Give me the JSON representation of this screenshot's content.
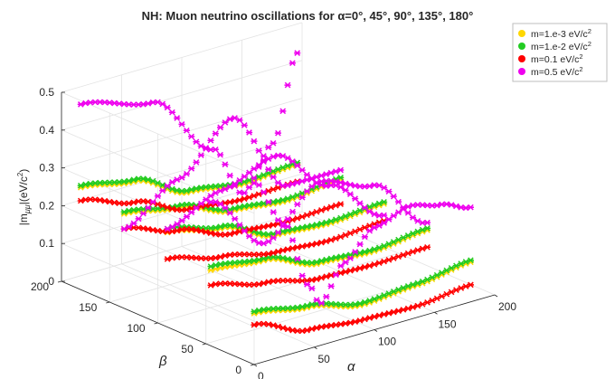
{
  "chart_data": {
    "type": "scatter3d",
    "title": "NH: Muon neutrino oscillations for α=0°, 45°, 90°, 135°, 180°",
    "xlabel": "α",
    "ylabel": "β",
    "zlabel": "|m_μμ|(eV/c^2)",
    "xlim": [
      0,
      200
    ],
    "ylim": [
      0,
      200
    ],
    "zlim": [
      0,
      0.5
    ],
    "x_ticks": [
      "0",
      "50",
      "100",
      "150",
      "200"
    ],
    "y_ticks": [
      "0",
      "50",
      "100",
      "150",
      "200"
    ],
    "z_ticks": [
      "0",
      "0.1",
      "0.2",
      "0.3",
      "0.4",
      "0.5"
    ],
    "grid": true,
    "legend_position": "top-right",
    "alpha_values": [
      0,
      45,
      90,
      135,
      180
    ],
    "series": [
      {
        "name": "m=1.e-3 eV/c^2",
        "legend_main": "m=1.e-3 eV/c",
        "legend_sup": "2",
        "color": "#ffd700",
        "curves": [
          [
            [
              0,
              0.135
            ],
            [
              45,
              0.11
            ],
            [
              90,
              0.075
            ],
            [
              135,
              0.085
            ],
            [
              180,
              0.105
            ]
          ],
          [
            [
              0,
              0.2
            ],
            [
              45,
              0.185
            ],
            [
              90,
              0.135
            ],
            [
              135,
              0.125
            ],
            [
              180,
              0.14
            ]
          ],
          [
            [
              0,
              0.25
            ],
            [
              45,
              0.22
            ],
            [
              90,
              0.16
            ],
            [
              135,
              0.15
            ],
            [
              180,
              0.16
            ]
          ],
          [
            [
              0,
              0.25
            ],
            [
              45,
              0.225
            ],
            [
              90,
              0.175
            ],
            [
              135,
              0.16
            ],
            [
              180,
              0.175
            ]
          ],
          [
            [
              0,
              0.27
            ],
            [
              45,
              0.245
            ],
            [
              90,
              0.175
            ],
            [
              135,
              0.155
            ],
            [
              180,
              0.165
            ]
          ]
        ]
      },
      {
        "name": "m=1.e-2 eV/c^2",
        "legend_main": "m=1.e-2 eV/c",
        "legend_sup": "2",
        "color": "#22cc22",
        "curves": [
          [
            [
              0,
              0.14
            ],
            [
              45,
              0.115
            ],
            [
              90,
              0.08
            ],
            [
              135,
              0.09
            ],
            [
              180,
              0.11
            ]
          ],
          [
            [
              0,
              0.21
            ],
            [
              45,
              0.19
            ],
            [
              90,
              0.14
            ],
            [
              135,
              0.13
            ],
            [
              180,
              0.145
            ]
          ],
          [
            [
              0,
              0.26
            ],
            [
              45,
              0.225
            ],
            [
              90,
              0.165
            ],
            [
              135,
              0.155
            ],
            [
              180,
              0.165
            ]
          ],
          [
            [
              0,
              0.255
            ],
            [
              45,
              0.23
            ],
            [
              90,
              0.18
            ],
            [
              135,
              0.165
            ],
            [
              180,
              0.18
            ]
          ],
          [
            [
              0,
              0.275
            ],
            [
              45,
              0.25
            ],
            [
              90,
              0.18
            ],
            [
              135,
              0.16
            ],
            [
              180,
              0.17
            ]
          ]
        ]
      },
      {
        "name": "m=0.1 eV/c^2",
        "legend_main": "m=0.1 eV/c",
        "legend_sup": "2",
        "color": "#ff0000",
        "curves": [
          [
            [
              0,
              0.105
            ],
            [
              45,
              0.05
            ],
            [
              90,
              0.035
            ],
            [
              135,
              0.03
            ],
            [
              180,
              0.045
            ]
          ],
          [
            [
              0,
              0.16
            ],
            [
              45,
              0.125
            ],
            [
              90,
              0.095
            ],
            [
              135,
              0.09
            ],
            [
              180,
              0.095
            ]
          ],
          [
            [
              0,
              0.18
            ],
            [
              45,
              0.145
            ],
            [
              90,
              0.115
            ],
            [
              135,
              0.105
            ],
            [
              180,
              0.115
            ]
          ],
          [
            [
              0,
              0.21
            ],
            [
              45,
              0.165
            ],
            [
              90,
              0.115
            ],
            [
              135,
              0.105
            ],
            [
              180,
              0.11
            ]
          ],
          [
            [
              0,
              0.235
            ],
            [
              45,
              0.19
            ],
            [
              90,
              0.13
            ],
            [
              135,
              0.115
            ],
            [
              180,
              0.12
            ]
          ]
        ]
      },
      {
        "name": "m=0.5 eV/c^2",
        "legend_main": "m=0.5 eV/c",
        "legend_sup": "2",
        "color": "#ee00ee",
        "curves": [
          [
            [
              0,
              0.48
            ],
            [
              25,
              0.35
            ],
            [
              45,
              0.17
            ],
            [
              55,
              0.11
            ],
            [
              75,
              0.2
            ],
            [
              100,
              0.27
            ],
            [
              130,
              0.3
            ],
            [
              155,
              0.28
            ],
            [
              180,
              0.25
            ]
          ],
          [
            [
              0,
              0.38
            ],
            [
              45,
              0.23
            ],
            [
              90,
              0.35
            ],
            [
              135,
              0.3
            ],
            [
              180,
              0.16
            ]
          ],
          [
            [
              0,
              0.26
            ],
            [
              45,
              0.32
            ],
            [
              90,
              0.37
            ],
            [
              135,
              0.25
            ],
            [
              180,
              0.13
            ]
          ],
          [
            [
              0,
              0.21
            ],
            [
              45,
              0.3
            ],
            [
              90,
              0.42
            ],
            [
              135,
              0.2
            ],
            [
              180,
              0.2
            ]
          ],
          [
            [
              0,
              0.49
            ],
            [
              60,
              0.44
            ],
            [
              110,
              0.27
            ],
            [
              135,
              0.13
            ],
            [
              160,
              0.24
            ],
            [
              180,
              0.46
            ]
          ]
        ]
      }
    ]
  }
}
